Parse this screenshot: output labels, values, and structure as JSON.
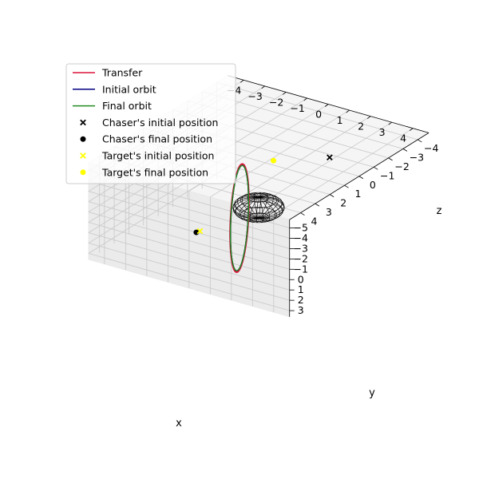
{
  "chart_data": {
    "type": "line",
    "projection": "3d",
    "title": "",
    "xlabel": "x",
    "ylabel": "y",
    "zlabel": "z",
    "xlim": [
      -4,
      4
    ],
    "ylim": [
      -4,
      4
    ],
    "zlim": [
      -5,
      3
    ],
    "grid": true,
    "legend_position": "top-left",
    "x_ticks": [
      "−4",
      "−3",
      "−2",
      "−1",
      "0",
      "1",
      "2",
      "3",
      "4"
    ],
    "y_ticks": [
      "−4",
      "−3",
      "−2",
      "−1",
      "0",
      "1",
      "2",
      "3",
      "4"
    ],
    "z_ticks": [
      "−5",
      "−4",
      "−3",
      "−2",
      "−1",
      "0",
      "1",
      "2",
      "3"
    ],
    "central_body": {
      "shape": "wireframe-sphere",
      "radius": 1,
      "center": [
        0,
        0,
        0
      ],
      "color": "#000000"
    },
    "series": [
      {
        "name": "Transfer",
        "kind": "line",
        "color": "#dc143c",
        "path": {
          "a": 3.08,
          "b": 3.08,
          "w": [
            0,
            0.37,
            -0.66
          ],
          "center": [
            0,
            0,
            0
          ]
        }
      },
      {
        "name": "Initial orbit",
        "kind": "line",
        "color": "#000080",
        "path": {
          "a": 3.0,
          "b": 3.0,
          "w": [
            0,
            0.37,
            -0.66
          ],
          "center": [
            0,
            0,
            0
          ]
        }
      },
      {
        "name": "Final orbit",
        "kind": "line",
        "color": "#228b22",
        "path": {
          "a": 3.0,
          "b": 3.0,
          "w": [
            0,
            0.37,
            -0.66
          ],
          "center": [
            0,
            0,
            0
          ]
        }
      },
      {
        "name": "Chaser's initial position",
        "kind": "point",
        "marker": "x",
        "color": "#000000",
        "point": [
          1.9,
          -2.1,
          -4.1
        ]
      },
      {
        "name": "Chaser's final position",
        "kind": "point",
        "marker": "o",
        "color": "#000000",
        "point": [
          -1.7,
          1.8,
          1.8
        ]
      },
      {
        "name": "Target's initial position",
        "kind": "point",
        "marker": "x",
        "color": "#ffff00",
        "point": [
          -1.6,
          1.7,
          1.7
        ]
      },
      {
        "name": "Target's final position",
        "kind": "point",
        "marker": "o",
        "color": "#ffff00",
        "point": [
          -1.1,
          -2.6,
          -1.6
        ]
      }
    ]
  }
}
